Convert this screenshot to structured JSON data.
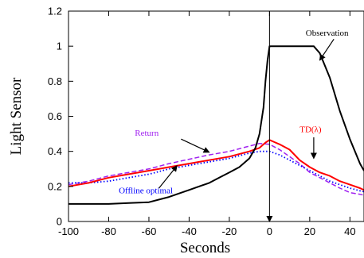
{
  "chart_data": {
    "type": "line",
    "title": "",
    "xlabel": "Seconds",
    "ylabel": "Light Sensor",
    "xlim": [
      -100,
      47
    ],
    "ylim": [
      0,
      1.2
    ],
    "x_ticks": [
      -100,
      -80,
      -60,
      -40,
      -20,
      0,
      20,
      40
    ],
    "y_ticks": [
      0,
      0.2,
      0.4,
      0.6,
      0.8,
      1,
      1.2
    ],
    "y_tick_labels": [
      "0",
      "0.2",
      "0.4",
      "0.6",
      "0.8",
      "1",
      "1.2"
    ],
    "grid": false,
    "legend": "none",
    "series": [
      {
        "name": "Observation",
        "color": "#000000",
        "style": "solid",
        "x": [
          -100,
          -90,
          -80,
          -70,
          -60,
          -50,
          -40,
          -30,
          -25,
          -20,
          -15,
          -10,
          -7,
          -5,
          -3,
          -2,
          -1,
          0,
          5,
          10,
          15,
          20,
          22,
          25,
          30,
          35,
          40,
          45,
          47
        ],
        "y": [
          0.1,
          0.1,
          0.1,
          0.105,
          0.11,
          0.14,
          0.18,
          0.22,
          0.25,
          0.28,
          0.31,
          0.36,
          0.42,
          0.5,
          0.65,
          0.8,
          0.92,
          1.0,
          1.0,
          1.0,
          1.0,
          1.0,
          1.0,
          0.96,
          0.82,
          0.63,
          0.47,
          0.33,
          0.29
        ]
      },
      {
        "name": "TD(λ)",
        "color": "#ff0000",
        "style": "solid",
        "x": [
          -100,
          -90,
          -80,
          -70,
          -60,
          -50,
          -40,
          -30,
          -20,
          -10,
          -5,
          -2,
          0,
          2,
          5,
          10,
          15,
          20,
          25,
          30,
          35,
          40,
          45,
          47
        ],
        "y": [
          0.2,
          0.22,
          0.25,
          0.27,
          0.29,
          0.31,
          0.33,
          0.35,
          0.37,
          0.4,
          0.42,
          0.45,
          0.465,
          0.455,
          0.44,
          0.41,
          0.35,
          0.31,
          0.28,
          0.26,
          0.23,
          0.21,
          0.19,
          0.18
        ]
      },
      {
        "name": "Return",
        "color": "#a020f0",
        "style": "dashed",
        "x": [
          -100,
          -90,
          -80,
          -70,
          -60,
          -50,
          -40,
          -30,
          -20,
          -10,
          -5,
          0,
          5,
          10,
          15,
          20,
          25,
          30,
          35,
          40,
          45,
          47
        ],
        "y": [
          0.21,
          0.23,
          0.26,
          0.28,
          0.3,
          0.33,
          0.355,
          0.38,
          0.4,
          0.43,
          0.445,
          0.44,
          0.41,
          0.37,
          0.33,
          0.28,
          0.25,
          0.22,
          0.19,
          0.165,
          0.155,
          0.15
        ]
      },
      {
        "name": "Offline optimal",
        "color": "#0000ff",
        "style": "dotted",
        "x": [
          -100,
          -90,
          -80,
          -70,
          -60,
          -50,
          -40,
          -30,
          -20,
          -10,
          -5,
          0,
          5,
          10,
          15,
          20,
          25,
          30,
          35,
          40,
          45,
          47
        ],
        "y": [
          0.22,
          0.22,
          0.23,
          0.25,
          0.27,
          0.3,
          0.32,
          0.34,
          0.36,
          0.39,
          0.4,
          0.4,
          0.38,
          0.35,
          0.32,
          0.29,
          0.26,
          0.23,
          0.21,
          0.19,
          0.175,
          0.17
        ]
      }
    ],
    "annotations": [
      {
        "text": "Observation",
        "color": "#000000"
      },
      {
        "text": "TD(λ)",
        "color": "#ff0000"
      },
      {
        "text": "Return",
        "color": "#a020f0"
      },
      {
        "text": "Offline optimal",
        "color": "#0000ff"
      }
    ],
    "reference_line": {
      "x": 0
    }
  }
}
